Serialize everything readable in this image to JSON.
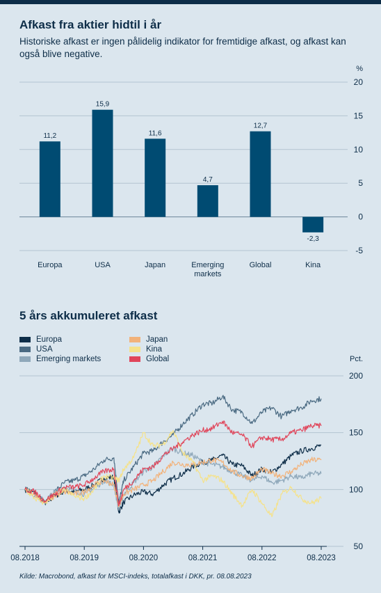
{
  "chart1": {
    "title": "Afkast fra aktier hidtil i år",
    "subtitle": "Historiske afkast er ingen pålidelig indikator for fremtidige afkast, og afkast kan også blive negative."
  },
  "chart2": {
    "title": "5 års akkumuleret afkast"
  },
  "source": "Kilde: Macrobond, afkast for MSCI-indeks, totalafkast i DKK, pr. 08.08.2023",
  "colors": {
    "background": "#dbe6ee",
    "bar": "#004b72",
    "text": "#0d2d48",
    "Europa": "#0d2d48",
    "USA": "#4a6a82",
    "Emerging markets": "#8fa8ba",
    "Japan": "#f2b27a",
    "Kina": "#f5e28a",
    "Global": "#e0455a"
  },
  "chart_data": [
    {
      "type": "bar",
      "title": "Afkast fra aktier hidtil i år",
      "ylabel": "%",
      "categories": [
        "Europa",
        "USA",
        "Japan",
        "Emerging markets",
        "Global",
        "Kina"
      ],
      "category_lines": [
        [
          "Europa"
        ],
        [
          "USA"
        ],
        [
          "Japan"
        ],
        [
          "Emerging",
          "markets"
        ],
        [
          "Global"
        ],
        [
          "Kina"
        ]
      ],
      "values": [
        11.2,
        15.9,
        11.6,
        4.7,
        12.7,
        -2.3
      ],
      "value_labels": [
        "11,2",
        "15,9",
        "11,6",
        "4,7",
        "12,7",
        "-2,3"
      ],
      "ylim": [
        -5,
        20
      ],
      "yticks": [
        20,
        15,
        10,
        5,
        0,
        -5
      ],
      "ytick_labels": [
        "20",
        "15",
        "10",
        "5",
        "0",
        "-5"
      ],
      "grid": true
    },
    {
      "type": "line",
      "title": "5 års akkumuleret afkast",
      "ylabel": "Pct.",
      "xticks": [
        "08.2018",
        "08.2019",
        "08.2020",
        "08.2021",
        "08.2022",
        "08.2023"
      ],
      "ylim": [
        50,
        200
      ],
      "yticks": [
        200,
        150,
        100,
        50
      ],
      "grid": true,
      "legend": "top-left",
      "series": [
        {
          "name": "Europa",
          "x": [
            "2018-08",
            "2018-10",
            "2018-12",
            "2019-02",
            "2019-04",
            "2019-06",
            "2019-08",
            "2019-10",
            "2019-12",
            "2020-02",
            "2020-03",
            "2020-04",
            "2020-06",
            "2020-08",
            "2020-10",
            "2020-12",
            "2021-02",
            "2021-04",
            "2021-06",
            "2021-08",
            "2021-10",
            "2021-12",
            "2022-02",
            "2022-04",
            "2022-06",
            "2022-08",
            "2022-10",
            "2022-12",
            "2023-02",
            "2023-04",
            "2023-06",
            "2023-08"
          ],
          "values": [
            100,
            97,
            88,
            94,
            99,
            98,
            100,
            104,
            110,
            111,
            80,
            89,
            95,
            98,
            96,
            104,
            110,
            114,
            120,
            124,
            126,
            130,
            122,
            121,
            112,
            118,
            115,
            122,
            130,
            134,
            136,
            139
          ]
        },
        {
          "name": "USA",
          "x": [
            "2018-08",
            "2018-10",
            "2018-12",
            "2019-02",
            "2019-04",
            "2019-06",
            "2019-08",
            "2019-10",
            "2019-12",
            "2020-02",
            "2020-03",
            "2020-04",
            "2020-06",
            "2020-08",
            "2020-10",
            "2020-12",
            "2021-02",
            "2021-04",
            "2021-06",
            "2021-08",
            "2021-10",
            "2021-12",
            "2022-02",
            "2022-04",
            "2022-06",
            "2022-08",
            "2022-10",
            "2022-12",
            "2023-02",
            "2023-04",
            "2023-06",
            "2023-08"
          ],
          "values": [
            100,
            98,
            88,
            98,
            106,
            108,
            112,
            118,
            126,
            128,
            88,
            108,
            120,
            132,
            134,
            142,
            148,
            158,
            166,
            175,
            176,
            182,
            170,
            168,
            158,
            168,
            172,
            164,
            170,
            172,
            178,
            180
          ]
        },
        {
          "name": "Emerging markets",
          "x": [
            "2018-08",
            "2018-10",
            "2018-12",
            "2019-02",
            "2019-04",
            "2019-06",
            "2019-08",
            "2019-10",
            "2019-12",
            "2020-02",
            "2020-03",
            "2020-04",
            "2020-06",
            "2020-08",
            "2020-10",
            "2020-12",
            "2021-02",
            "2021-04",
            "2021-06",
            "2021-08",
            "2021-10",
            "2021-12",
            "2022-02",
            "2022-04",
            "2022-06",
            "2022-08",
            "2022-10",
            "2022-12",
            "2023-02",
            "2023-04",
            "2023-06",
            "2023-08"
          ],
          "values": [
            100,
            95,
            90,
            98,
            102,
            99,
            96,
            101,
            108,
            104,
            82,
            96,
            106,
            116,
            120,
            130,
            136,
            132,
            130,
            124,
            122,
            120,
            116,
            112,
            108,
            112,
            106,
            108,
            112,
            110,
            114,
            114
          ]
        },
        {
          "name": "Japan",
          "x": [
            "2018-08",
            "2018-10",
            "2018-12",
            "2019-02",
            "2019-04",
            "2019-06",
            "2019-08",
            "2019-10",
            "2019-12",
            "2020-02",
            "2020-03",
            "2020-04",
            "2020-06",
            "2020-08",
            "2020-10",
            "2020-12",
            "2021-02",
            "2021-04",
            "2021-06",
            "2021-08",
            "2021-10",
            "2021-12",
            "2022-02",
            "2022-04",
            "2022-06",
            "2022-08",
            "2022-10",
            "2022-12",
            "2023-02",
            "2023-04",
            "2023-06",
            "2023-08"
          ],
          "values": [
            100,
            96,
            88,
            94,
            98,
            96,
            98,
            104,
            108,
            104,
            86,
            96,
            100,
            104,
            108,
            116,
            124,
            122,
            122,
            124,
            126,
            124,
            116,
            112,
            110,
            118,
            114,
            112,
            116,
            122,
            126,
            126
          ]
        },
        {
          "name": "Kina",
          "x": [
            "2018-08",
            "2018-10",
            "2018-12",
            "2019-02",
            "2019-04",
            "2019-06",
            "2019-08",
            "2019-10",
            "2019-12",
            "2020-02",
            "2020-03",
            "2020-04",
            "2020-06",
            "2020-08",
            "2020-10",
            "2020-12",
            "2021-02",
            "2021-04",
            "2021-06",
            "2021-08",
            "2021-10",
            "2021-12",
            "2022-02",
            "2022-04",
            "2022-06",
            "2022-08",
            "2022-10",
            "2022-12",
            "2023-02",
            "2023-04",
            "2023-06",
            "2023-08"
          ],
          "values": [
            100,
            92,
            88,
            96,
            100,
            94,
            92,
            100,
            112,
            110,
            108,
            118,
            128,
            150,
            138,
            140,
            152,
            132,
            124,
            108,
            112,
            108,
            96,
            86,
            100,
            88,
            76,
            96,
            102,
            92,
            88,
            92
          ]
        },
        {
          "name": "Global",
          "x": [
            "2018-08",
            "2018-10",
            "2018-12",
            "2019-02",
            "2019-04",
            "2019-06",
            "2019-08",
            "2019-10",
            "2019-12",
            "2020-02",
            "2020-03",
            "2020-04",
            "2020-06",
            "2020-08",
            "2020-10",
            "2020-12",
            "2021-02",
            "2021-04",
            "2021-06",
            "2021-08",
            "2021-10",
            "2021-12",
            "2022-02",
            "2022-04",
            "2022-06",
            "2022-08",
            "2022-10",
            "2022-12",
            "2023-02",
            "2023-04",
            "2023-06",
            "2023-08"
          ],
          "values": [
            100,
            98,
            90,
            96,
            102,
            102,
            104,
            110,
            116,
            118,
            86,
            100,
            108,
            118,
            120,
            130,
            136,
            142,
            148,
            152,
            154,
            160,
            150,
            148,
            138,
            146,
            144,
            144,
            150,
            152,
            156,
            156
          ]
        }
      ]
    }
  ]
}
